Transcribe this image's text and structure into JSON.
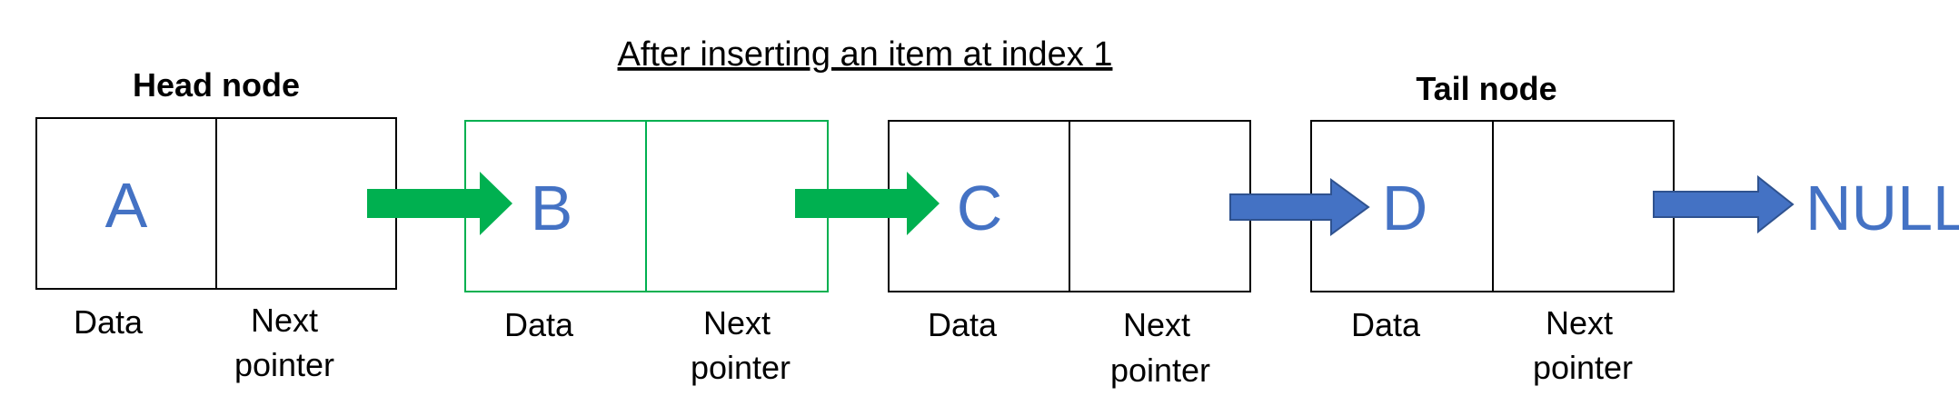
{
  "title": "After inserting an item at index 1",
  "captions": {
    "head": "Head node",
    "tail": "Tail node"
  },
  "field_labels": {
    "data": "Data",
    "next_line1": "Next",
    "next_line2": "pointer"
  },
  "nodes": [
    {
      "value": "A",
      "role": "head",
      "inserted": false
    },
    {
      "value": "B",
      "role": "middle",
      "inserted": true
    },
    {
      "value": "C",
      "role": "middle",
      "inserted": false
    },
    {
      "value": "D",
      "role": "tail",
      "inserted": false
    }
  ],
  "terminal": "NULL",
  "colors": {
    "node_border": "#000000",
    "inserted_border": "#00B050",
    "inserted_arrow": "#00B050",
    "arrow": "#4472C4",
    "arrow_outline": "#2F528F",
    "value_text": "#4472C4"
  }
}
